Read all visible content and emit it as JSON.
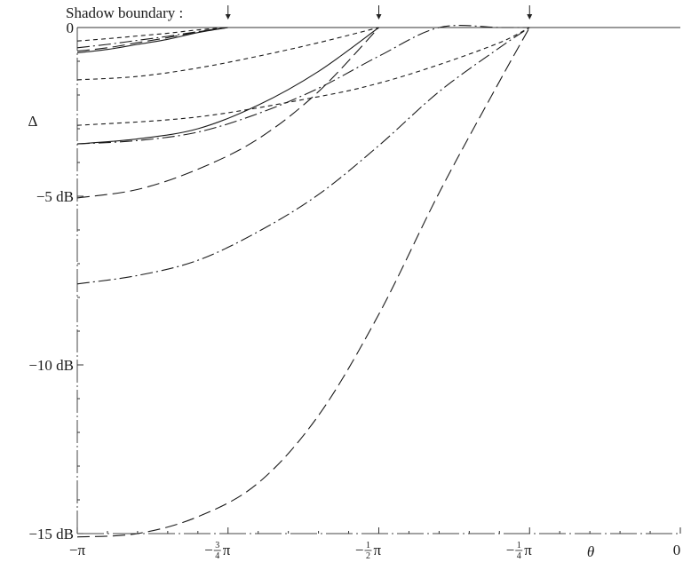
{
  "chart_data": {
    "type": "line",
    "annotation": "Shadow boundary :",
    "ylabel": "Δ",
    "xlabel": "θ",
    "yticks": [
      {
        "value": 0,
        "label": "0"
      },
      {
        "value": -5,
        "label": "−5 dB"
      },
      {
        "value": -10,
        "label": "−10 dB"
      },
      {
        "value": -15,
        "label": "−15 dB"
      }
    ],
    "xticks": [
      {
        "value": -1.0,
        "label": "−π",
        "frac": ""
      },
      {
        "value": -0.75,
        "label": "−",
        "frac": "3/4",
        "suffix": "π"
      },
      {
        "value": -0.5,
        "label": "−",
        "frac": "1/2",
        "suffix": "π"
      },
      {
        "value": -0.25,
        "label": "−",
        "frac": "1/4",
        "suffix": "π"
      },
      {
        "value": 0,
        "label": "0",
        "frac": ""
      }
    ],
    "xunit": "multiples of π",
    "xlim": [
      -1.0,
      0
    ],
    "ylim": [
      -15,
      0
    ],
    "shadow_boundaries": [
      -0.75,
      -0.5,
      -0.25
    ],
    "series": [
      {
        "style": "solid",
        "x": [
          -1.0,
          -0.95,
          -0.9,
          -0.85,
          -0.8,
          -0.75
        ],
        "y": [
          -0.75,
          -0.65,
          -0.5,
          -0.35,
          -0.15,
          0.0
        ]
      },
      {
        "style": "short-dash",
        "x": [
          -1.0,
          -0.95,
          -0.9,
          -0.85,
          -0.8,
          -0.75
        ],
        "y": [
          -0.4,
          -0.33,
          -0.25,
          -0.17,
          -0.07,
          0.0
        ]
      },
      {
        "style": "dash-dot",
        "x": [
          -1.0,
          -0.95,
          -0.9,
          -0.85,
          -0.8,
          -0.75
        ],
        "y": [
          -0.6,
          -0.5,
          -0.38,
          -0.26,
          -0.12,
          0.0
        ]
      },
      {
        "style": "long-dash",
        "x": [
          -1.0,
          -0.95,
          -0.9,
          -0.85,
          -0.8,
          -0.75
        ],
        "y": [
          -0.7,
          -0.6,
          -0.45,
          -0.3,
          -0.13,
          0.0
        ]
      },
      {
        "style": "short-dash",
        "x": [
          -1.0,
          -0.9,
          -0.8,
          -0.7,
          -0.6,
          -0.5
        ],
        "y": [
          -1.55,
          -1.45,
          -1.2,
          -0.85,
          -0.45,
          0.0
        ]
      },
      {
        "style": "solid",
        "x": [
          -1.0,
          -0.9,
          -0.8,
          -0.7,
          -0.6,
          -0.5
        ],
        "y": [
          -3.45,
          -3.3,
          -3.0,
          -2.3,
          -1.3,
          0.0
        ]
      },
      {
        "style": "long-dash",
        "x": [
          -1.0,
          -0.9,
          -0.8,
          -0.7,
          -0.6,
          -0.5
        ],
        "y": [
          -5.05,
          -4.8,
          -4.2,
          -3.3,
          -1.9,
          0.0
        ]
      },
      {
        "style": "short-dash",
        "x": [
          -1.0,
          -0.8,
          -0.6,
          -0.5,
          -0.4,
          -0.3,
          -0.25
        ],
        "y": [
          -2.9,
          -2.65,
          -2.05,
          -1.65,
          -1.1,
          -0.45,
          0.0
        ]
      },
      {
        "style": "dash-dot",
        "x": [
          -1.0,
          -0.9,
          -0.8,
          -0.7,
          -0.6,
          -0.5,
          -0.4,
          -0.3,
          -0.25
        ],
        "y": [
          -3.45,
          -3.35,
          -3.1,
          -2.55,
          -1.8,
          -0.85,
          0.0,
          0.0,
          0.0
        ]
      },
      {
        "style": "dash-dot",
        "x": [
          -1.0,
          -0.9,
          -0.8,
          -0.7,
          -0.6,
          -0.5,
          -0.4,
          -0.3,
          -0.25
        ],
        "y": [
          -7.6,
          -7.35,
          -6.9,
          -6.05,
          -4.95,
          -3.5,
          -1.9,
          -0.6,
          0.0
        ]
      },
      {
        "style": "long-dash",
        "x": [
          -1.0,
          -0.9,
          -0.8,
          -0.7,
          -0.6,
          -0.5,
          -0.4,
          -0.3,
          -0.25
        ],
        "y": [
          -15.1,
          -15.0,
          -14.5,
          -13.5,
          -11.5,
          -8.5,
          -4.9,
          -1.6,
          0.0
        ]
      }
    ]
  }
}
